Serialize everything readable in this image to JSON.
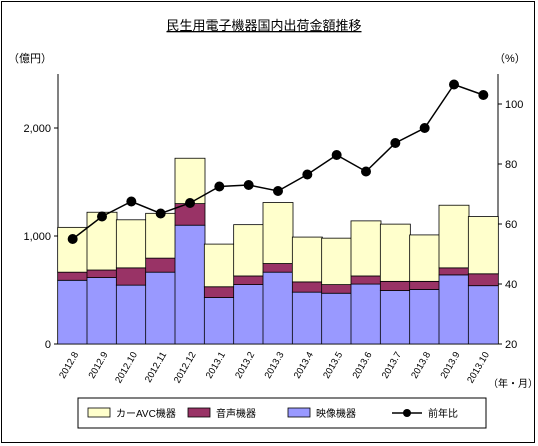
{
  "chart_data": {
    "type": "bar",
    "title": "民生用電子機器国内出荷金額推移",
    "y_left_unit": "（億円）",
    "y_right_unit": "（%）",
    "x_unit": "（年・月）",
    "categories": [
      "2012.8",
      "2012.9",
      "2012.10",
      "2012.11",
      "2012.12",
      "2013.1",
      "2013.2",
      "2013.3",
      "2013.4",
      "2013.5",
      "2013.6",
      "2013.7",
      "2013.8",
      "2013.9",
      "2013.10"
    ],
    "ylim_left": [
      0,
      2500
    ],
    "ylim_right": [
      20,
      110
    ],
    "left_ticks": [
      "0",
      "1,000",
      "2,000"
    ],
    "right_ticks": [
      "20",
      "40",
      "60",
      "80",
      "100"
    ],
    "series": [
      {
        "name": "映像機器",
        "type": "bar",
        "color": "#9999ff",
        "values": [
          590,
          615,
          545,
          665,
          1100,
          430,
          550,
          665,
          480,
          470,
          555,
          495,
          505,
          640,
          540
        ]
      },
      {
        "name": "音声機器",
        "type": "bar",
        "color": "#993366",
        "values": [
          75,
          70,
          160,
          130,
          200,
          100,
          80,
          80,
          95,
          80,
          75,
          85,
          75,
          65,
          110
        ]
      },
      {
        "name": "カーAVC機器",
        "type": "bar",
        "color": "#ffffcc",
        "values": [
          415,
          535,
          445,
          415,
          420,
          395,
          475,
          565,
          415,
          430,
          510,
          530,
          430,
          580,
          530
        ]
      },
      {
        "name": "前年比",
        "type": "line",
        "axis": "right",
        "color": "#000000",
        "values": [
          55,
          62.5,
          67.5,
          63.5,
          67,
          72.5,
          73,
          71,
          76.5,
          83,
          77.5,
          87,
          92,
          106.5,
          103
        ]
      }
    ],
    "legend_order": [
      "カーAVC機器",
      "音声機器",
      "映像機器",
      "前年比"
    ],
    "legend_placement": "bottom",
    "grid": false
  }
}
